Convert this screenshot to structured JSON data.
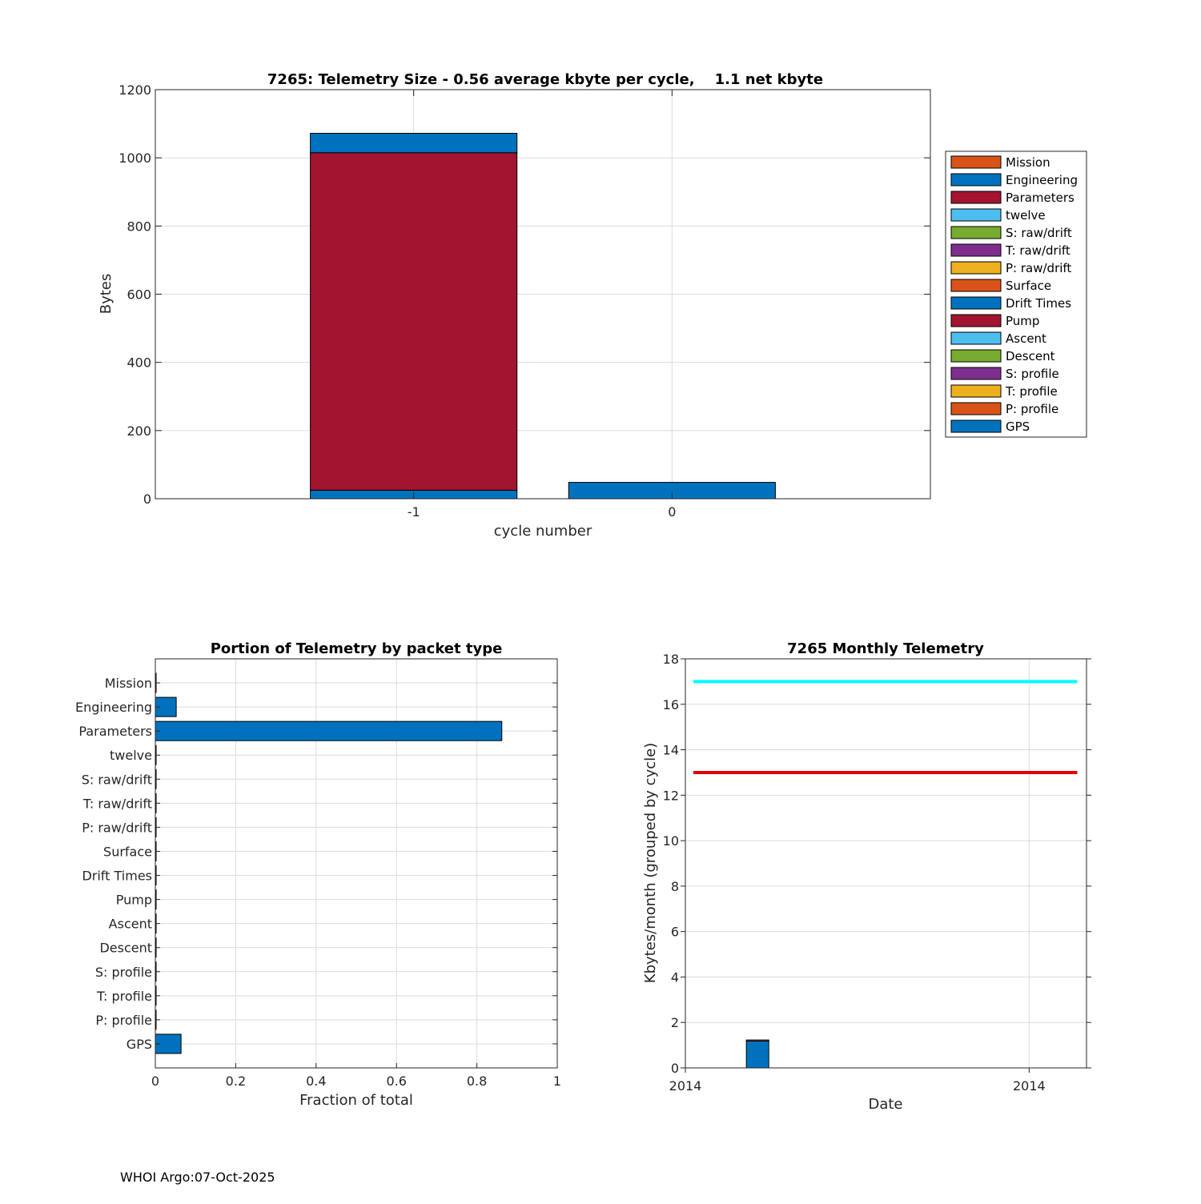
{
  "footer": "WHOI Argo:07-Oct-2025",
  "packet_types": [
    "Mission",
    "Engineering",
    "Parameters",
    "twelve",
    "S: raw/drift",
    "T: raw/drift",
    "P: raw/drift",
    "Surface",
    "Drift Times",
    "Pump",
    "Ascent",
    "Descent",
    "S: profile",
    "T: profile",
    "P: profile",
    "GPS"
  ],
  "packet_colors": [
    "#D95319",
    "#0072BD",
    "#A2142F",
    "#4DBEEE",
    "#77AC30",
    "#7E2F8E",
    "#EDB120",
    "#D95319",
    "#0072BD",
    "#A2142F",
    "#4DBEEE",
    "#77AC30",
    "#7E2F8E",
    "#EDB120",
    "#D95319",
    "#0072BD"
  ],
  "chart_data": [
    {
      "type": "bar",
      "stacked": true,
      "title": "7265: Telemetry Size - 0.56 average kbyte per cycle,    1.1 net kbyte",
      "xlabel": "cycle number",
      "ylabel": "Bytes",
      "categories": [
        "-1",
        "0"
      ],
      "xlim": [
        -2,
        1
      ],
      "ylim": [
        0,
        1200
      ],
      "yticks": [
        0,
        200,
        400,
        600,
        800,
        1000,
        1200
      ],
      "grid": true,
      "legend_position": "right",
      "stack_order_bottom_to_top": [
        "GPS",
        "Parameters",
        "Engineering"
      ],
      "series": [
        {
          "name": "GPS",
          "values": [
            25,
            48
          ]
        },
        {
          "name": "Parameters",
          "values": [
            990,
            0
          ]
        },
        {
          "name": "Engineering",
          "values": [
            57,
            0
          ]
        }
      ]
    },
    {
      "type": "bar",
      "orientation": "horizontal",
      "title": "Portion of Telemetry by packet type",
      "xlabel": "Fraction of total",
      "xlim": [
        0,
        1
      ],
      "xticks": [
        "0",
        "0.2",
        "0.4",
        "0.6",
        "0.8",
        "1"
      ],
      "grid": true,
      "categories": [
        "Mission",
        "Engineering",
        "Parameters",
        "twelve",
        "S: raw/drift",
        "T: raw/drift",
        "P: raw/drift",
        "Surface",
        "Drift Times",
        "Pump",
        "Ascent",
        "Descent",
        "S: profile",
        "T: profile",
        "P: profile",
        "GPS"
      ],
      "values": [
        0.002,
        0.052,
        0.862,
        0.002,
        0.002,
        0.002,
        0.002,
        0.002,
        0.002,
        0.002,
        0.002,
        0.002,
        0.002,
        0.002,
        0.002,
        0.064
      ]
    },
    {
      "type": "bar",
      "title": "7265 Monthly Telemetry",
      "xlabel": "Date",
      "ylabel": "Kbytes/month (grouped by cycle)",
      "ylim": [
        0,
        18
      ],
      "yticks": [
        0,
        2,
        4,
        6,
        8,
        10,
        12,
        14,
        16,
        18
      ],
      "xticks": [
        "2014",
        "2014"
      ],
      "grid": true,
      "bars": [
        {
          "x": 0.18,
          "segments": [
            {
              "value": 1.18,
              "color": "#0072BD"
            },
            {
              "value": 0.05,
              "color": "#D95319"
            }
          ]
        }
      ],
      "lines": [
        {
          "name": "limit-cyan",
          "value": 17,
          "color": "#00FFFF"
        },
        {
          "name": "limit-red",
          "value": 13,
          "color": "#E00000"
        }
      ]
    }
  ]
}
